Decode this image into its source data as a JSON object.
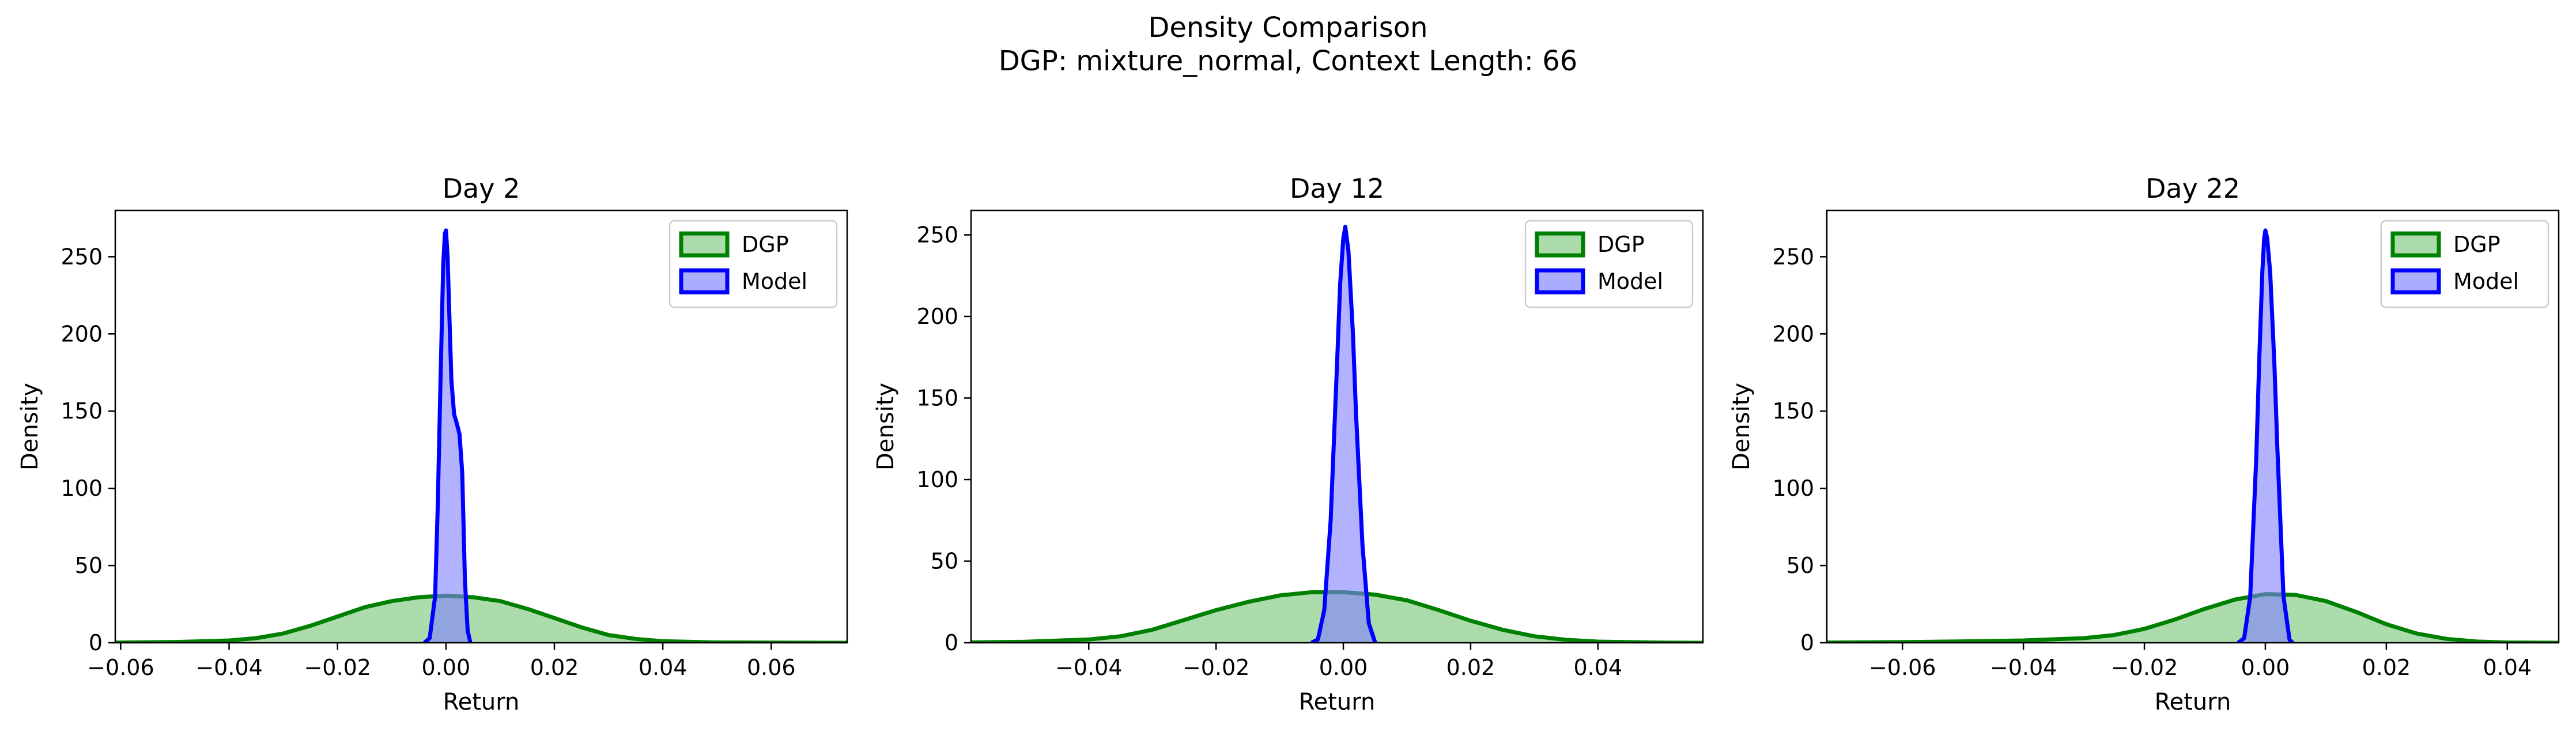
{
  "figure": {
    "title_line1": "Density Comparison",
    "title_line2": "DGP: mixture_normal, Context Length: 66"
  },
  "colors": {
    "dgp_line": "#008000",
    "dgp_fill": "#7fc97f",
    "model_line": "#0000ff",
    "model_fill": "#7f7fff"
  },
  "chart_data": [
    {
      "type": "area",
      "title": "Day 2",
      "xlabel": "Return",
      "ylabel": "Density",
      "xlim": [
        -0.061,
        0.074
      ],
      "ylim": [
        0,
        280
      ],
      "xticks": [
        -0.06,
        -0.04,
        -0.02,
        0.0,
        0.02,
        0.04,
        0.06
      ],
      "xtick_labels": [
        "−0.06",
        "−0.04",
        "−0.02",
        "0.00",
        "0.02",
        "0.04",
        "0.06"
      ],
      "yticks": [
        0,
        50,
        100,
        150,
        200,
        250
      ],
      "ytick_labels": [
        "0",
        "50",
        "100",
        "150",
        "200",
        "250"
      ],
      "legend": [
        "DGP",
        "Model"
      ],
      "legend_position": "top-right",
      "series": [
        {
          "name": "DGP",
          "points": [
            [
              -0.061,
              0.1
            ],
            [
              -0.05,
              0.5
            ],
            [
              -0.04,
              1.5
            ],
            [
              -0.035,
              3
            ],
            [
              -0.03,
              6
            ],
            [
              -0.025,
              11
            ],
            [
              -0.02,
              17
            ],
            [
              -0.015,
              23
            ],
            [
              -0.01,
              27
            ],
            [
              -0.005,
              29.5
            ],
            [
              0.0,
              30.5
            ],
            [
              0.005,
              29.5
            ],
            [
              0.01,
              27
            ],
            [
              0.015,
              22
            ],
            [
              0.02,
              16
            ],
            [
              0.025,
              10
            ],
            [
              0.03,
              5
            ],
            [
              0.035,
              2.5
            ],
            [
              0.04,
              1
            ],
            [
              0.05,
              0.2
            ],
            [
              0.074,
              0.0
            ]
          ]
        },
        {
          "name": "Model",
          "points": [
            [
              -0.004,
              0
            ],
            [
              -0.003,
              3
            ],
            [
              -0.002,
              30
            ],
            [
              -0.0015,
              90
            ],
            [
              -0.001,
              170
            ],
            [
              -0.0005,
              245
            ],
            [
              -0.0002,
              265
            ],
            [
              0.0,
              267
            ],
            [
              0.0003,
              250
            ],
            [
              0.0006,
              215
            ],
            [
              0.001,
              170
            ],
            [
              0.0015,
              148
            ],
            [
              0.002,
              142
            ],
            [
              0.0025,
              135
            ],
            [
              0.003,
              110
            ],
            [
              0.0035,
              40
            ],
            [
              0.004,
              8
            ],
            [
              0.0045,
              0
            ]
          ]
        }
      ]
    },
    {
      "type": "area",
      "title": "Day 12",
      "xlabel": "Return",
      "ylabel": "Density",
      "xlim": [
        -0.0585,
        0.0565
      ],
      "ylim": [
        0,
        265
      ],
      "xticks": [
        -0.04,
        -0.02,
        0.0,
        0.02,
        0.04
      ],
      "xtick_labels": [
        "−0.04",
        "−0.02",
        "0.00",
        "0.02",
        "0.04"
      ],
      "yticks": [
        0,
        50,
        100,
        150,
        200,
        250
      ],
      "ytick_labels": [
        "0",
        "50",
        "100",
        "150",
        "200",
        "250"
      ],
      "legend": [
        "DGP",
        "Model"
      ],
      "legend_position": "top-right",
      "series": [
        {
          "name": "DGP",
          "points": [
            [
              -0.0585,
              0.2
            ],
            [
              -0.05,
              0.6
            ],
            [
              -0.04,
              2
            ],
            [
              -0.035,
              4
            ],
            [
              -0.03,
              8
            ],
            [
              -0.025,
              14
            ],
            [
              -0.02,
              20
            ],
            [
              -0.015,
              25
            ],
            [
              -0.01,
              29
            ],
            [
              -0.005,
              31
            ],
            [
              0.0,
              31
            ],
            [
              0.005,
              29.5
            ],
            [
              0.01,
              26
            ],
            [
              0.015,
              20
            ],
            [
              0.02,
              13.5
            ],
            [
              0.025,
              8
            ],
            [
              0.03,
              4
            ],
            [
              0.035,
              1.8
            ],
            [
              0.04,
              0.7
            ],
            [
              0.05,
              0.1
            ],
            [
              0.0565,
              0.0
            ]
          ]
        },
        {
          "name": "Model",
          "points": [
            [
              -0.005,
              0
            ],
            [
              -0.004,
              2
            ],
            [
              -0.003,
              20
            ],
            [
              -0.002,
              75
            ],
            [
              -0.001,
              170
            ],
            [
              -0.0005,
              220
            ],
            [
              0.0,
              248
            ],
            [
              0.0003,
              255
            ],
            [
              0.0008,
              240
            ],
            [
              0.0015,
              190
            ],
            [
              0.002,
              140
            ],
            [
              0.003,
              60
            ],
            [
              0.004,
              12
            ],
            [
              0.005,
              0
            ]
          ]
        }
      ]
    },
    {
      "type": "area",
      "title": "Day 22",
      "xlabel": "Return",
      "ylabel": "Density",
      "xlim": [
        -0.0725,
        0.0485
      ],
      "ylim": [
        0,
        280
      ],
      "xticks": [
        -0.06,
        -0.04,
        -0.02,
        0.0,
        0.02,
        0.04
      ],
      "xtick_labels": [
        "−0.06",
        "−0.04",
        "−0.02",
        "0.00",
        "0.02",
        "0.04"
      ],
      "yticks": [
        0,
        50,
        100,
        150,
        200,
        250
      ],
      "ytick_labels": [
        "0",
        "50",
        "100",
        "150",
        "200",
        "250"
      ],
      "legend": [
        "DGP",
        "Model"
      ],
      "legend_position": "top-right",
      "series": [
        {
          "name": "DGP",
          "points": [
            [
              -0.0725,
              0.1
            ],
            [
              -0.06,
              0.4
            ],
            [
              -0.05,
              0.9
            ],
            [
              -0.04,
              1.5
            ],
            [
              -0.03,
              3
            ],
            [
              -0.025,
              5
            ],
            [
              -0.02,
              9
            ],
            [
              -0.015,
              15
            ],
            [
              -0.01,
              22
            ],
            [
              -0.005,
              28
            ],
            [
              0.0,
              31.5
            ],
            [
              0.005,
              31
            ],
            [
              0.01,
              27
            ],
            [
              0.015,
              20
            ],
            [
              0.02,
              12
            ],
            [
              0.025,
              6
            ],
            [
              0.03,
              2.5
            ],
            [
              0.035,
              0.8
            ],
            [
              0.04,
              0.2
            ],
            [
              0.0485,
              0.0
            ]
          ]
        },
        {
          "name": "Model",
          "points": [
            [
              -0.0045,
              0
            ],
            [
              -0.0035,
              3
            ],
            [
              -0.0025,
              30
            ],
            [
              -0.0015,
              120
            ],
            [
              -0.001,
              185
            ],
            [
              -0.0005,
              240
            ],
            [
              -0.0002,
              262
            ],
            [
              0.0,
              267
            ],
            [
              0.0003,
              262
            ],
            [
              0.0008,
              240
            ],
            [
              0.0015,
              180
            ],
            [
              0.002,
              125
            ],
            [
              0.003,
              30
            ],
            [
              0.004,
              2
            ],
            [
              0.0045,
              0
            ]
          ]
        }
      ]
    }
  ]
}
